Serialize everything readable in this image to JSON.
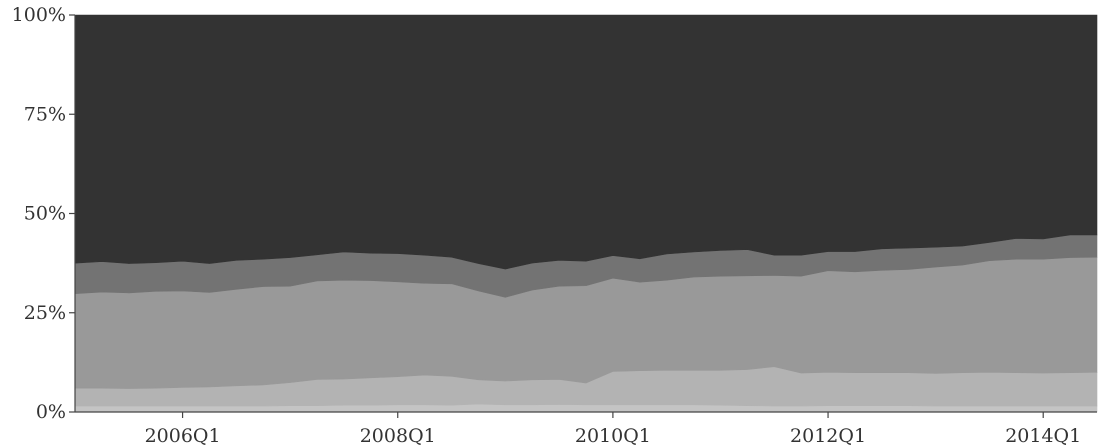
{
  "chart_data": {
    "type": "area",
    "stacked": true,
    "percent": true,
    "title": "",
    "xlabel": "",
    "ylabel": "",
    "x": [
      "2005Q1",
      "2005Q2",
      "2005Q3",
      "2005Q4",
      "2006Q1",
      "2006Q2",
      "2006Q3",
      "2006Q4",
      "2007Q1",
      "2007Q2",
      "2007Q3",
      "2007Q4",
      "2008Q1",
      "2008Q2",
      "2008Q3",
      "2008Q4",
      "2009Q1",
      "2009Q2",
      "2009Q3",
      "2009Q4",
      "2010Q1",
      "2010Q2",
      "2010Q3",
      "2010Q4",
      "2011Q1",
      "2011Q2",
      "2011Q3",
      "2011Q4",
      "2012Q1",
      "2012Q2",
      "2012Q3",
      "2012Q4",
      "2013Q1",
      "2013Q2",
      "2013Q3",
      "2013Q4",
      "2014Q1",
      "2014Q2",
      "2014Q3"
    ],
    "ylim": [
      0,
      100
    ],
    "yticks": [
      "0%",
      "25%",
      "50%",
      "75%",
      "100%"
    ],
    "ytick_values": [
      0,
      25,
      50,
      75,
      100
    ],
    "xticks": [
      "2006Q1",
      "2008Q1",
      "2010Q1",
      "2012Q1",
      "2014Q1"
    ],
    "grid": false,
    "legend": "none",
    "series": [
      {
        "color": "#c4c4c4",
        "values": [
          1.5,
          1.5,
          1.5,
          1.5,
          1.5,
          1.5,
          1.5,
          1.5,
          1.6,
          1.6,
          1.7,
          1.7,
          1.8,
          1.8,
          1.7,
          2.0,
          1.8,
          1.8,
          1.9,
          1.8,
          1.8,
          1.8,
          1.8,
          1.8,
          1.7,
          1.6,
          1.5,
          1.5,
          1.6,
          1.6,
          1.6,
          1.6,
          1.5,
          1.5,
          1.5,
          1.5,
          1.5,
          1.5,
          1.5
        ]
      },
      {
        "color": "#b3b3b3",
        "values": [
          4.5,
          4.5,
          4.4,
          4.5,
          4.7,
          4.8,
          5.1,
          5.3,
          5.8,
          6.6,
          6.6,
          6.9,
          7.1,
          7.5,
          7.3,
          6.1,
          6.0,
          6.3,
          6.3,
          5.5,
          8.4,
          8.6,
          8.7,
          8.7,
          8.8,
          9.1,
          9.9,
          8.3,
          8.4,
          8.3,
          8.3,
          8.3,
          8.2,
          8.4,
          8.5,
          8.4,
          8.3,
          8.4,
          8.5
        ]
      },
      {
        "color": "#999999",
        "values": [
          23.8,
          24.2,
          24.1,
          24.4,
          24.3,
          23.8,
          24.3,
          24.8,
          24.3,
          24.8,
          24.9,
          24.5,
          23.9,
          23.1,
          23.3,
          22.4,
          21.1,
          22.6,
          23.5,
          24.5,
          23.5,
          22.3,
          22.7,
          23.5,
          23.7,
          23.6,
          23.0,
          24.4,
          25.6,
          25.4,
          25.8,
          26.0,
          26.8,
          27.1,
          28.1,
          28.6,
          28.7,
          29.0,
          29.0
        ]
      },
      {
        "color": "#737373",
        "values": [
          7.7,
          7.7,
          7.4,
          7.2,
          7.5,
          7.3,
          7.3,
          6.9,
          7.2,
          6.6,
          7.1,
          6.9,
          7.1,
          7.1,
          6.7,
          6.9,
          7.1,
          6.8,
          6.5,
          6.2,
          5.7,
          5.9,
          6.6,
          6.3,
          6.5,
          6.6,
          5.1,
          5.3,
          4.8,
          5.1,
          5.4,
          5.4,
          5.0,
          4.8,
          4.6,
          5.2,
          5.1,
          5.7,
          5.6
        ]
      },
      {
        "color": "#333333",
        "values": [
          62.5,
          62.1,
          62.6,
          62.4,
          62.0,
          62.6,
          61.8,
          61.5,
          61.1,
          60.4,
          59.7,
          60.0,
          60.1,
          60.5,
          61.0,
          62.6,
          64.0,
          62.5,
          61.8,
          62.0,
          60.6,
          61.4,
          60.2,
          59.7,
          59.3,
          59.1,
          60.5,
          60.5,
          59.6,
          59.6,
          58.9,
          58.7,
          58.5,
          58.2,
          57.3,
          56.3,
          56.4,
          55.4,
          55.4
        ]
      }
    ]
  }
}
